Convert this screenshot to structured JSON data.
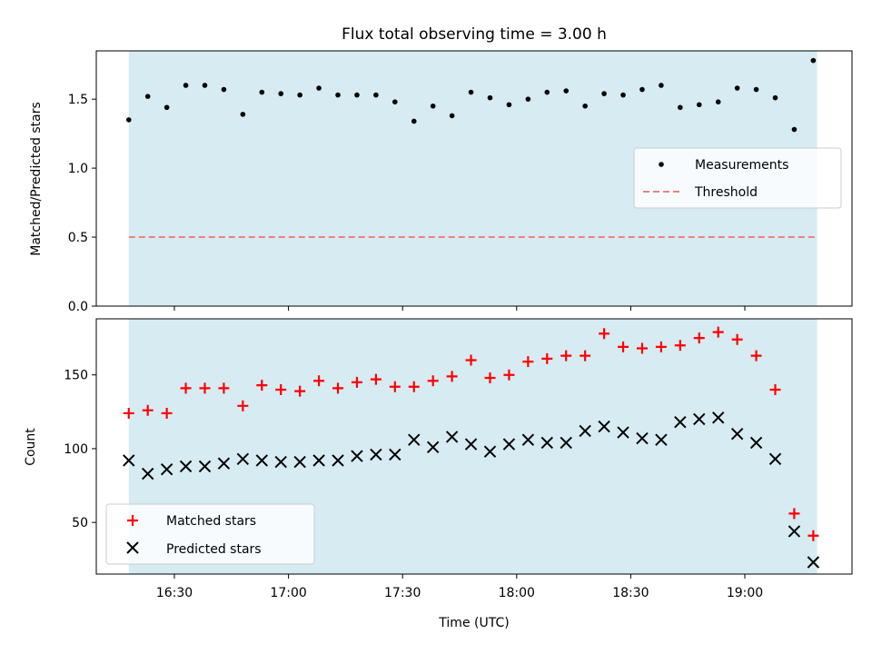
{
  "title": "Flux total observing time = 3.00 h",
  "colors": {
    "shade": "#add8e6",
    "threshold": "#f08080",
    "matched": "#ff0000",
    "predicted": "#000000",
    "measurement": "#000000"
  },
  "chart_data": [
    {
      "type": "scatter",
      "panel": "top",
      "ylabel": "Matched/Predicted stars",
      "xlabel": "",
      "ylim": [
        0,
        1.85
      ],
      "yticks": [
        0.0,
        0.5,
        1.0,
        1.5
      ],
      "ytick_labels": [
        "0.0",
        "0.5",
        "1.0",
        "1.5"
      ],
      "shaded_span": [
        "16:18",
        "19:19"
      ],
      "threshold": 0.5,
      "legend_position": "center-right",
      "series": [
        {
          "name": "Measurements",
          "marker": "dot",
          "x": [
            "16:18",
            "16:23",
            "16:28",
            "16:33",
            "16:38",
            "16:43",
            "16:48",
            "16:53",
            "16:58",
            "17:03",
            "17:08",
            "17:13",
            "17:18",
            "17:23",
            "17:28",
            "17:33",
            "17:38",
            "17:43",
            "17:48",
            "17:53",
            "17:58",
            "18:03",
            "18:08",
            "18:13",
            "18:18",
            "18:23",
            "18:28",
            "18:33",
            "18:38",
            "18:43",
            "18:48",
            "18:53",
            "18:58",
            "19:03",
            "19:08",
            "19:13",
            "19:18"
          ],
          "y": [
            1.35,
            1.52,
            1.44,
            1.6,
            1.6,
            1.57,
            1.39,
            1.55,
            1.54,
            1.53,
            1.58,
            1.53,
            1.53,
            1.53,
            1.48,
            1.34,
            1.45,
            1.38,
            1.55,
            1.51,
            1.46,
            1.5,
            1.55,
            1.56,
            1.45,
            1.54,
            1.53,
            1.57,
            1.6,
            1.44,
            1.46,
            1.48,
            1.58,
            1.57,
            1.51,
            1.28,
            1.78
          ]
        },
        {
          "name": "Threshold",
          "marker": "dashed-line",
          "x": [
            "16:18",
            "19:19"
          ],
          "y": [
            0.5,
            0.5
          ]
        }
      ]
    },
    {
      "type": "scatter",
      "panel": "bottom",
      "ylabel": "Count",
      "xlabel": "Time (UTC)",
      "ylim": [
        15,
        188
      ],
      "yticks": [
        50,
        100,
        150
      ],
      "xticks": [
        "16:30",
        "17:00",
        "17:30",
        "18:00",
        "18:30",
        "19:00"
      ],
      "shaded_span": [
        "16:18",
        "19:19"
      ],
      "legend_position": "lower-left",
      "series": [
        {
          "name": "Matched stars",
          "marker": "plus",
          "x": [
            "16:18",
            "16:23",
            "16:28",
            "16:33",
            "16:38",
            "16:43",
            "16:48",
            "16:53",
            "16:58",
            "17:03",
            "17:08",
            "17:13",
            "17:18",
            "17:23",
            "17:28",
            "17:33",
            "17:38",
            "17:43",
            "17:48",
            "17:53",
            "17:58",
            "18:03",
            "18:08",
            "18:13",
            "18:18",
            "18:23",
            "18:28",
            "18:33",
            "18:38",
            "18:43",
            "18:48",
            "18:53",
            "18:58",
            "19:03",
            "19:08",
            "19:13",
            "19:18"
          ],
          "y": [
            124,
            126,
            124,
            141,
            141,
            141,
            129,
            143,
            140,
            139,
            146,
            141,
            145,
            147,
            142,
            142,
            146,
            149,
            160,
            148,
            150,
            159,
            161,
            163,
            163,
            178,
            169,
            168,
            169,
            170,
            175,
            179,
            174,
            163,
            140,
            56,
            41
          ]
        },
        {
          "name": "Predicted stars",
          "marker": "x",
          "x": [
            "16:18",
            "16:23",
            "16:28",
            "16:33",
            "16:38",
            "16:43",
            "16:48",
            "16:53",
            "16:58",
            "17:03",
            "17:08",
            "17:13",
            "17:18",
            "17:23",
            "17:28",
            "17:33",
            "17:38",
            "17:43",
            "17:48",
            "17:53",
            "17:58",
            "18:03",
            "18:08",
            "18:13",
            "18:18",
            "18:23",
            "18:28",
            "18:33",
            "18:38",
            "18:43",
            "18:48",
            "18:53",
            "18:58",
            "19:03",
            "19:08",
            "19:13",
            "19:18"
          ],
          "y": [
            92,
            83,
            86,
            88,
            88,
            90,
            93,
            92,
            91,
            91,
            92,
            92,
            95,
            96,
            96,
            106,
            101,
            108,
            103,
            98,
            103,
            106,
            104,
            104,
            112,
            115,
            111,
            107,
            106,
            118,
            120,
            121,
            110,
            104,
            93,
            44,
            23
          ]
        }
      ]
    }
  ]
}
